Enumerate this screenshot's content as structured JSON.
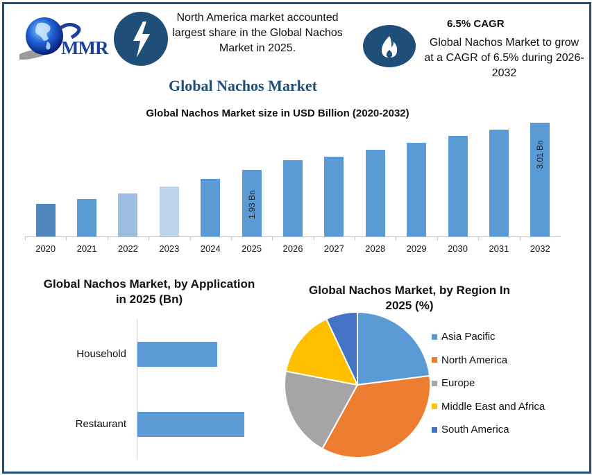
{
  "header": {
    "logo_text": "MMR",
    "info_left": {
      "icon": "lightning-bolt-icon",
      "lines": [
        "North America market accounted",
        "largest share in the Global Nachos",
        "Market in 2025."
      ]
    },
    "info_right": {
      "icon": "flame-icon",
      "heading": "6.5% CAGR",
      "lines": [
        "Global Nachos Market to grow",
        "at a CAGR of 6.5% during 2026-",
        "2032"
      ]
    },
    "main_title": "Global Nachos Market"
  },
  "colors": {
    "frame": "#1f4e79",
    "bar_blue": "#5b9bd5",
    "bar_2020": "#4f87bd",
    "bar_2022": "#9dbde2",
    "bar_2023": "#bed3ec",
    "asia_pacific": "#5b9bd5",
    "north_america": "#ed7d31",
    "europe": "#a5a5a5",
    "mea": "#ffc000",
    "south_america": "#4472c4"
  },
  "chart_data": [
    {
      "type": "bar",
      "title": "Global Nachos Market size in USD Billion (2020-2032)",
      "xlabel": "",
      "ylabel": "",
      "categories": [
        "2020",
        "2021",
        "2022",
        "2023",
        "2024",
        "2025",
        "2026",
        "2027",
        "2028",
        "2029",
        "2030",
        "2031",
        "2032"
      ],
      "values": [
        1.15,
        1.26,
        1.39,
        1.55,
        1.72,
        1.93,
        2.15,
        2.23,
        2.39,
        2.55,
        2.71,
        2.85,
        3.01
      ],
      "data_labels": {
        "2025": "1.93 Bn",
        "2032": "3.01 Bn"
      },
      "grid": false,
      "legend": "none"
    },
    {
      "type": "bar",
      "orientation": "horizontal",
      "title": "Global Nachos Market, by Application in 2025 (Bn)",
      "categories": [
        "Household",
        "Restaurant"
      ],
      "values": [
        0.78,
        1.05
      ],
      "grid": false,
      "legend": "none"
    },
    {
      "type": "pie",
      "title": "Global Nachos Market, by Region In 2025 (%)",
      "categories": [
        "Asia Pacific",
        "North America",
        "Europe",
        "Middle East and Africa",
        "South America"
      ],
      "values": [
        23,
        35,
        20,
        15,
        7
      ],
      "legend_position": "right"
    }
  ],
  "bar_chart": {
    "title": "Global Nachos Market size in USD Billion (2020-2032)",
    "years": [
      "2020",
      "2021",
      "2022",
      "2023",
      "2024",
      "2025",
      "2026",
      "2027",
      "2028",
      "2029",
      "2030",
      "2031",
      "2032"
    ],
    "label_2025": "1.93 Bn",
    "label_2032": "3.01 Bn"
  },
  "application_chart": {
    "title_line1": "Global Nachos Market, by Application",
    "title_line2": "in 2025 (Bn)",
    "labels": [
      "Household",
      "Restaurant"
    ]
  },
  "region_chart": {
    "title_line1": "Global Nachos Market, by Region In",
    "title_line2": "2025 (%)",
    "legend": [
      "Asia Pacific",
      "North America",
      "Europe",
      "Middle East and Africa",
      "South America"
    ]
  }
}
